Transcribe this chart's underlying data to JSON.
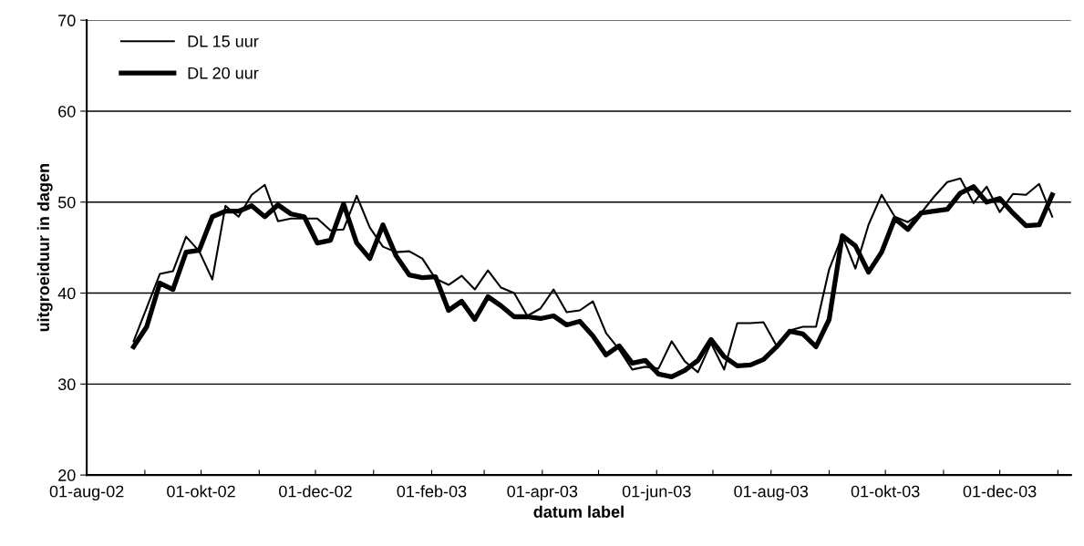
{
  "chart_data": {
    "type": "line",
    "xlabel": "datum label",
    "ylabel": "uitgroeiduur in dagen",
    "x": [
      "2002-08-26",
      "2002-09-02",
      "2002-09-09",
      "2002-09-16",
      "2002-09-23",
      "2002-09-30",
      "2002-10-07",
      "2002-10-14",
      "2002-10-21",
      "2002-10-28",
      "2002-11-04",
      "2002-11-11",
      "2002-11-18",
      "2002-11-25",
      "2002-12-02",
      "2002-12-09",
      "2002-12-16",
      "2002-12-23",
      "2002-12-30",
      "2003-01-06",
      "2003-01-13",
      "2003-01-20",
      "2003-01-27",
      "2003-02-03",
      "2003-02-10",
      "2003-02-17",
      "2003-02-24",
      "2003-03-03",
      "2003-03-10",
      "2003-03-17",
      "2003-03-24",
      "2003-03-31",
      "2003-04-07",
      "2003-04-14",
      "2003-04-21",
      "2003-04-28",
      "2003-05-05",
      "2003-05-12",
      "2003-05-19",
      "2003-05-26",
      "2003-06-02",
      "2003-06-09",
      "2003-06-16",
      "2003-06-23",
      "2003-06-30",
      "2003-07-07",
      "2003-07-14",
      "2003-07-21",
      "2003-07-28",
      "2003-08-04",
      "2003-08-11",
      "2003-08-18",
      "2003-08-25",
      "2003-09-01",
      "2003-09-08",
      "2003-09-15",
      "2003-09-22",
      "2003-09-29",
      "2003-10-06",
      "2003-10-13",
      "2003-10-20",
      "2003-10-27",
      "2003-11-03",
      "2003-11-10",
      "2003-11-17",
      "2003-11-24",
      "2003-12-01",
      "2003-12-08",
      "2003-12-15",
      "2003-12-22",
      "2003-12-29"
    ],
    "series": [
      {
        "name": "DL 15 uur",
        "color": "#000000",
        "values": [
          34.7,
          38.4,
          42.1,
          42.4,
          46.2,
          44.6,
          41.5,
          49.6,
          48.4,
          50.8,
          51.9,
          47.9,
          48.2,
          48.2,
          48.2,
          46.9,
          47.0,
          50.7,
          47.2,
          45.1,
          44.5,
          44.6,
          43.8,
          41.6,
          40.9,
          41.9,
          40.4,
          42.5,
          40.6,
          40.0,
          37.5,
          38.3,
          40.4,
          37.9,
          38.1,
          39.1,
          35.6,
          33.8,
          31.6,
          31.9,
          31.7,
          34.7,
          32.5,
          31.3,
          34.5,
          31.6,
          36.7,
          36.7,
          36.8,
          34.2,
          35.9,
          36.3,
          36.3,
          42.6,
          46.3,
          42.7,
          47.5,
          50.8,
          48.4,
          47.8,
          48.8,
          50.6,
          52.2,
          52.6,
          49.9,
          51.7,
          48.9,
          50.9,
          50.8,
          52.0,
          48.4
        ]
      },
      {
        "name": "DL 20 uur",
        "color": "#000000",
        "values": [
          34.1,
          36.3,
          41.1,
          40.4,
          44.5,
          44.7,
          48.4,
          49.0,
          49.0,
          49.6,
          48.4,
          49.7,
          48.7,
          48.4,
          45.5,
          45.8,
          49.8,
          45.5,
          43.8,
          47.5,
          44.1,
          42.0,
          41.7,
          41.8,
          38.1,
          39.1,
          37.1,
          39.6,
          38.6,
          37.4,
          37.4,
          37.2,
          37.5,
          36.5,
          36.9,
          35.3,
          33.2,
          34.2,
          32.3,
          32.6,
          31.1,
          30.8,
          31.5,
          32.6,
          34.9,
          33.0,
          32.0,
          32.1,
          32.7,
          34.1,
          35.8,
          35.5,
          34.1,
          37.1,
          46.3,
          45.2,
          42.3,
          44.5,
          48.2,
          47.0,
          48.8,
          49.0,
          49.2,
          51.0,
          51.7,
          50.0,
          50.4,
          48.8,
          47.4,
          47.5,
          50.8
        ]
      }
    ],
    "xlim": [
      "2002-08-01",
      "2004-01-08"
    ],
    "xticks": [
      {
        "value": "2002-08-01",
        "label": "01-aug-02"
      },
      {
        "value": "2002-09-01",
        "label": null
      },
      {
        "value": "2002-10-01",
        "label": "01-okt-02"
      },
      {
        "value": "2002-11-01",
        "label": null
      },
      {
        "value": "2002-12-01",
        "label": "01-dec-02"
      },
      {
        "value": "2003-01-01",
        "label": null
      },
      {
        "value": "2003-02-01",
        "label": "01-feb-03"
      },
      {
        "value": "2003-03-01",
        "label": null
      },
      {
        "value": "2003-04-01",
        "label": "01-apr-03"
      },
      {
        "value": "2003-05-01",
        "label": null
      },
      {
        "value": "2003-06-01",
        "label": "01-jun-03"
      },
      {
        "value": "2003-07-01",
        "label": null
      },
      {
        "value": "2003-08-01",
        "label": "01-aug-03"
      },
      {
        "value": "2003-09-01",
        "label": null
      },
      {
        "value": "2003-10-01",
        "label": "01-okt-03"
      },
      {
        "value": "2003-11-01",
        "label": null
      },
      {
        "value": "2003-12-01",
        "label": "01-dec-03"
      },
      {
        "value": "2004-01-01",
        "label": null
      }
    ],
    "ylim": [
      20,
      70
    ],
    "yticks": [
      20,
      30,
      40,
      50,
      60,
      70
    ],
    "grid": "y",
    "legend": "top left",
    "marker": "none",
    "line_style": "solid"
  }
}
